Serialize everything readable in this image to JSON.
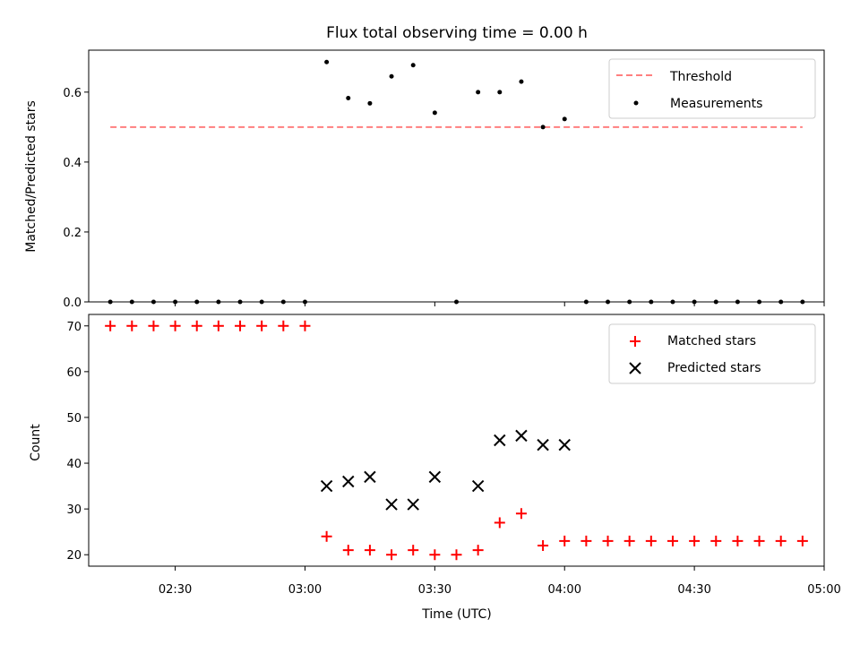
{
  "chart_data": [
    {
      "type": "scatter",
      "title": "Flux total observing time = 0.00 h",
      "xlabel": "",
      "ylabel": "Matched/Predicted stars",
      "ylim": [
        0,
        0.72
      ],
      "yticks": [
        "0.0",
        "0.2",
        "0.4",
        "0.6"
      ],
      "ytick_values": [
        0,
        0.2,
        0.4,
        0.6
      ],
      "threshold": {
        "name": "Threshold",
        "value": 0.5,
        "x_range": [
          "02:15",
          "04:55"
        ],
        "color": "#ff7f7f",
        "style": "dashed"
      },
      "series": [
        {
          "name": "Measurements",
          "color": "#000000",
          "x": [
            "02:15",
            "02:20",
            "02:25",
            "02:30",
            "02:35",
            "02:40",
            "02:45",
            "02:50",
            "02:55",
            "03:00",
            "03:05",
            "03:10",
            "03:15",
            "03:20",
            "03:25",
            "03:30",
            "03:35",
            "03:40",
            "03:45",
            "03:50",
            "03:55",
            "04:00",
            "04:05",
            "04:10",
            "04:15",
            "04:20",
            "04:25",
            "04:30",
            "04:35",
            "04:40",
            "04:45",
            "04:50",
            "04:55"
          ],
          "values": [
            0,
            0,
            0,
            0,
            0,
            0,
            0,
            0,
            0,
            0,
            0.686,
            0.583,
            0.568,
            0.645,
            0.677,
            0.541,
            0,
            0.6,
            0.6,
            0.63,
            0.5,
            0.523,
            0,
            0,
            0,
            0,
            0,
            0,
            0,
            0,
            0,
            0,
            0
          ]
        }
      ],
      "legend": "top-right",
      "grid": false
    },
    {
      "type": "scatter",
      "xlabel": "Time (UTC)",
      "ylabel": "Count",
      "ylim": [
        17.5,
        72.5
      ],
      "yticks": [
        "20",
        "30",
        "40",
        "50",
        "60",
        "70"
      ],
      "ytick_values": [
        20,
        30,
        40,
        50,
        60,
        70
      ],
      "xlim": [
        "02:10",
        "05:00"
      ],
      "xticks": [
        "02:30",
        "03:00",
        "03:30",
        "04:00",
        "04:30",
        "05:00"
      ],
      "series": [
        {
          "name": "Matched stars",
          "marker": "plus",
          "color": "#ff0000",
          "x": [
            "02:15",
            "02:20",
            "02:25",
            "02:30",
            "02:35",
            "02:40",
            "02:45",
            "02:50",
            "02:55",
            "03:00",
            "03:05",
            "03:10",
            "03:15",
            "03:20",
            "03:25",
            "03:30",
            "03:35",
            "03:40",
            "03:45",
            "03:50",
            "03:55",
            "04:00",
            "04:05",
            "04:10",
            "04:15",
            "04:20",
            "04:25",
            "04:30",
            "04:35",
            "04:40",
            "04:45",
            "04:50",
            "04:55"
          ],
          "values": [
            70,
            70,
            70,
            70,
            70,
            70,
            70,
            70,
            70,
            70,
            24,
            21,
            21,
            20,
            21,
            20,
            20,
            21,
            27,
            29,
            22,
            23,
            23,
            23,
            23,
            23,
            23,
            23,
            23,
            23,
            23,
            23,
            23
          ]
        },
        {
          "name": "Predicted stars",
          "marker": "x",
          "color": "#000000",
          "x": [
            "03:05",
            "03:10",
            "03:15",
            "03:20",
            "03:25",
            "03:30",
            "03:40",
            "03:45",
            "03:50",
            "03:55",
            "04:00"
          ],
          "values": [
            35,
            36,
            37,
            31,
            31,
            37,
            35,
            45,
            46,
            44,
            44
          ]
        }
      ],
      "legend": "top-right",
      "grid": false
    }
  ]
}
